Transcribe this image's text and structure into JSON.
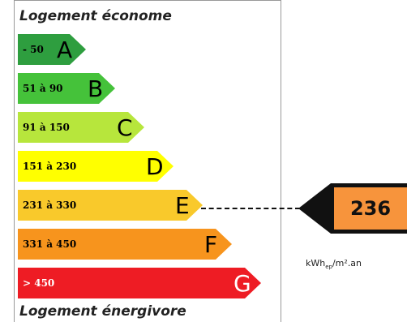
{
  "top_label": "Logement économe",
  "bottom_label": "Logement énergivore",
  "classes": [
    {
      "letter": "A",
      "range": "- 50",
      "color": "#2e9e3f"
    },
    {
      "letter": "B",
      "range": "51 à 90",
      "color": "#45c23a"
    },
    {
      "letter": "C",
      "range": "91 à 150",
      "color": "#b7e63c"
    },
    {
      "letter": "D",
      "range": "151 à 230",
      "color": "#ffff00"
    },
    {
      "letter": "E",
      "range": "231 à 330",
      "color": "#f9c92b"
    },
    {
      "letter": "F",
      "range": "331 à 450",
      "color": "#f7941d"
    },
    {
      "letter": "G",
      "range": "> 450",
      "color": "#ee1c24"
    }
  ],
  "current": {
    "value": "236",
    "class": "E",
    "color": "#f7943c"
  },
  "unit": "kWhep/m².an"
}
